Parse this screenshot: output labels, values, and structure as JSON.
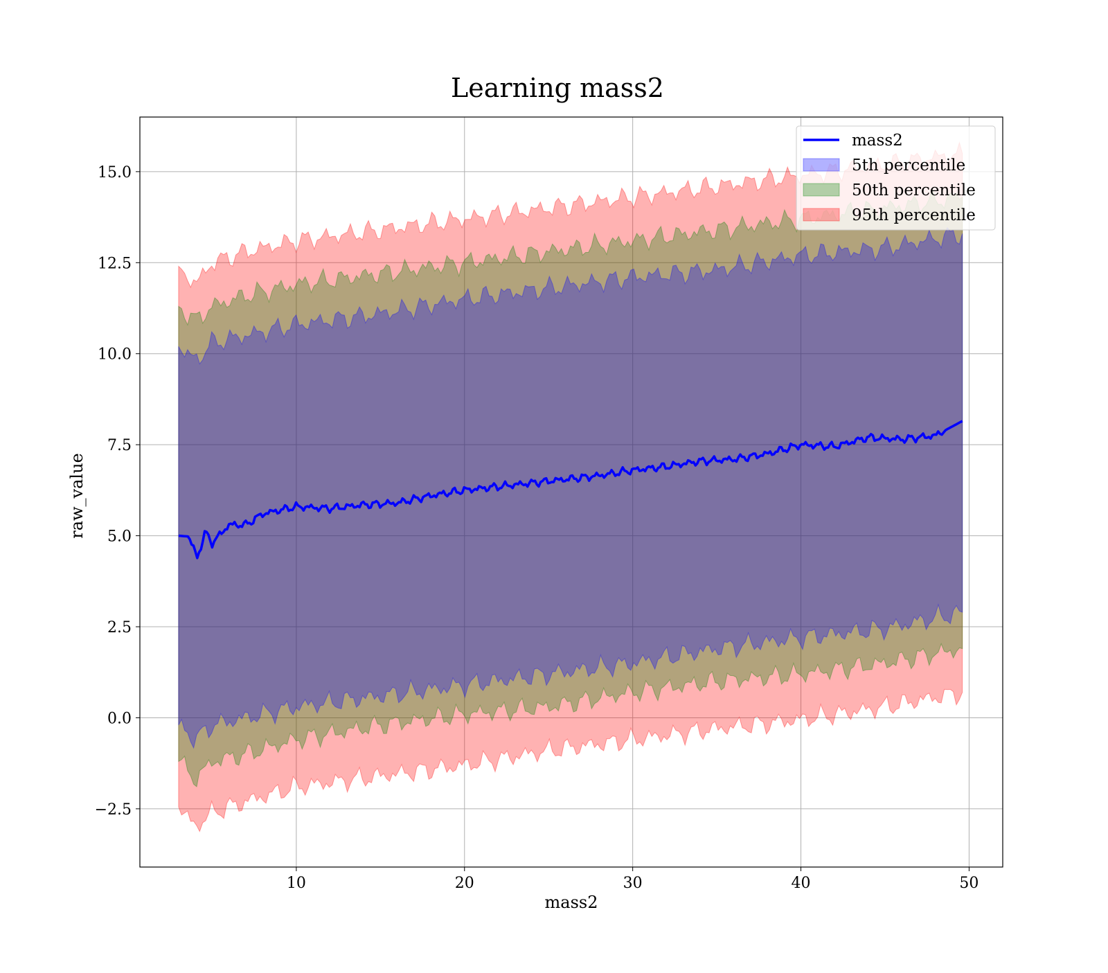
{
  "chart_data": {
    "type": "area",
    "title": "Learning mass2",
    "xlabel": "mass2",
    "ylabel": "raw_value",
    "xlim": [
      0.7,
      52.0
    ],
    "ylim": [
      -4.1,
      16.5
    ],
    "xticks": [
      10,
      20,
      30,
      40,
      50
    ],
    "xtick_labels": [
      "10",
      "20",
      "30",
      "40",
      "50"
    ],
    "yticks": [
      -2.5,
      0.0,
      2.5,
      5.0,
      7.5,
      10.0,
      12.5,
      15.0
    ],
    "ytick_labels": [
      "−2.5",
      "0.0",
      "2.5",
      "5.0",
      "7.5",
      "10.0",
      "12.5",
      "15.0"
    ],
    "grid": true,
    "legend_position": "top-right",
    "legend": [
      "mass2",
      "5th percentile",
      "50th percentile",
      "95th percentile"
    ],
    "series": [
      {
        "name": "mass2",
        "kind": "line",
        "color": "#0000ff",
        "x": [
          3.0,
          3.6,
          4.1,
          4.6,
          5.0,
          6.0,
          7.0,
          8.0,
          9.0,
          10.0,
          12.0,
          14.0,
          16.0,
          18.0,
          20.0,
          22.0,
          24.0,
          26.0,
          28.0,
          30.0,
          32.0,
          34.0,
          36.0,
          38.0,
          40.0,
          42.0,
          44.0,
          46.0,
          48.0,
          49.6
        ],
        "y": [
          5.0,
          4.98,
          4.4,
          5.1,
          4.8,
          5.3,
          5.3,
          5.6,
          5.7,
          5.8,
          5.75,
          5.85,
          5.9,
          6.1,
          6.25,
          6.35,
          6.45,
          6.55,
          6.65,
          6.8,
          6.9,
          7.05,
          7.1,
          7.25,
          7.5,
          7.45,
          7.7,
          7.65,
          7.75,
          8.15
        ]
      },
      {
        "name": "5th percentile",
        "kind": "band",
        "color": "#0000ff",
        "opacity": 0.3,
        "x": [
          3.0,
          4.0,
          5.0,
          7.0,
          10.0,
          15.0,
          20.0,
          25.0,
          30.0,
          35.0,
          40.0,
          45.0,
          49.6
        ],
        "lower": [
          -0.2,
          -0.6,
          -0.2,
          0.0,
          0.3,
          0.6,
          0.9,
          1.2,
          1.5,
          1.9,
          2.2,
          2.45,
          2.9
        ],
        "upper": [
          10.2,
          9.8,
          10.3,
          10.5,
          10.8,
          11.1,
          11.5,
          11.8,
          12.1,
          12.3,
          12.7,
          12.9,
          13.3
        ]
      },
      {
        "name": "50th percentile",
        "kind": "band",
        "color": "#008000",
        "opacity": 0.3,
        "x": [
          3.0,
          4.0,
          5.0,
          7.0,
          10.0,
          15.0,
          20.0,
          25.0,
          30.0,
          35.0,
          40.0,
          45.0,
          49.6
        ],
        "lower": [
          -1.2,
          -1.7,
          -1.2,
          -1.0,
          -0.6,
          -0.2,
          0.1,
          0.3,
          0.7,
          1.0,
          1.2,
          1.5,
          1.9
        ],
        "upper": [
          11.3,
          10.9,
          11.3,
          11.6,
          11.9,
          12.2,
          12.5,
          12.8,
          13.1,
          13.4,
          13.7,
          14.0,
          14.3
        ]
      },
      {
        "name": "95th percentile",
        "kind": "band",
        "color": "#ff0000",
        "opacity": 0.3,
        "x": [
          3.0,
          4.0,
          5.0,
          7.0,
          10.0,
          15.0,
          20.0,
          25.0,
          30.0,
          35.0,
          40.0,
          45.0,
          49.6
        ],
        "lower": [
          -2.45,
          -3.0,
          -2.6,
          -2.3,
          -1.9,
          -1.6,
          -1.3,
          -0.9,
          -0.6,
          -0.3,
          -0.05,
          0.3,
          0.7
        ],
        "upper": [
          12.4,
          11.9,
          12.5,
          12.8,
          13.1,
          13.4,
          13.7,
          14.0,
          14.3,
          14.6,
          14.9,
          15.2,
          15.5
        ]
      }
    ]
  }
}
